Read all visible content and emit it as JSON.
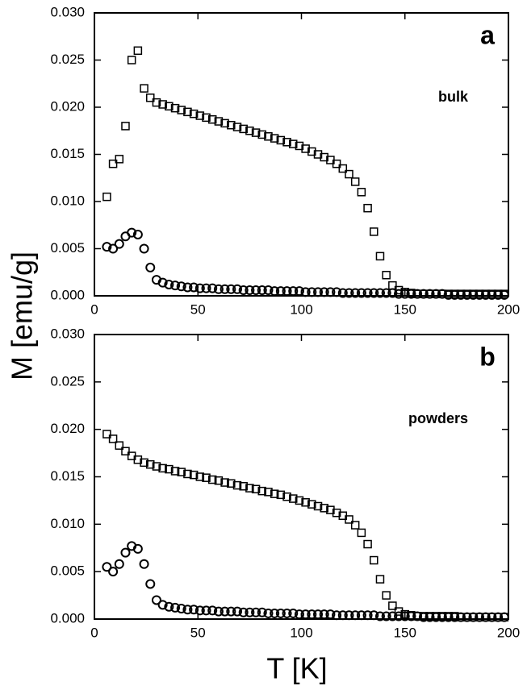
{
  "ylabel": "M [emu/g]",
  "xlabel": "T [K]",
  "chart_data": [
    {
      "type": "scatter",
      "letter": "a",
      "annotation": "bulk",
      "x": [
        6,
        9,
        12,
        15,
        18,
        21,
        24,
        27,
        30,
        33,
        36,
        39,
        42,
        45,
        48,
        51,
        54,
        57,
        60,
        63,
        66,
        69,
        72,
        75,
        78,
        81,
        84,
        87,
        90,
        93,
        96,
        99,
        102,
        105,
        108,
        111,
        114,
        117,
        120,
        123,
        126,
        129,
        132,
        135,
        138,
        141,
        144,
        147,
        150,
        153,
        156,
        159,
        162,
        165,
        168,
        171,
        174,
        177,
        180,
        183,
        186,
        189,
        192,
        195,
        198
      ],
      "series": [
        {
          "marker": "square",
          "color": "#000000",
          "values": [
            0.0105,
            0.014,
            0.0145,
            0.018,
            0.025,
            0.026,
            0.022,
            0.021,
            0.0205,
            0.0203,
            0.0201,
            0.0199,
            0.0197,
            0.0195,
            0.0193,
            0.0191,
            0.0189,
            0.0187,
            0.0185,
            0.0183,
            0.0181,
            0.0179,
            0.0177,
            0.0175,
            0.0173,
            0.0171,
            0.0169,
            0.0167,
            0.0165,
            0.0163,
            0.0161,
            0.0159,
            0.0156,
            0.0153,
            0.015,
            0.0147,
            0.0144,
            0.014,
            0.0135,
            0.0129,
            0.0121,
            0.011,
            0.0093,
            0.0068,
            0.0042,
            0.0022,
            0.0011,
            0.0006,
            0.0004,
            0.0003,
            0.0002,
            0.0002,
            0.0002,
            0.0002,
            0.0002,
            0.0002,
            0.0002,
            0.0002,
            0.0002,
            0.0002,
            0.0002,
            0.0002,
            0.0002,
            0.0002,
            0.0002
          ]
        },
        {
          "marker": "circle",
          "color": "#000000",
          "values": [
            0.0052,
            0.005,
            0.0055,
            0.0063,
            0.0067,
            0.0065,
            0.005,
            0.003,
            0.0017,
            0.0014,
            0.0012,
            0.0011,
            0.001,
            0.0009,
            0.0009,
            0.0008,
            0.0008,
            0.0008,
            0.0007,
            0.0007,
            0.0007,
            0.0007,
            0.0006,
            0.0006,
            0.0006,
            0.0006,
            0.0006,
            0.0005,
            0.0005,
            0.0005,
            0.0005,
            0.0005,
            0.0004,
            0.0004,
            0.0004,
            0.0004,
            0.0004,
            0.0004,
            0.0003,
            0.0003,
            0.0003,
            0.0003,
            0.0003,
            0.0003,
            0.0003,
            0.0003,
            0.0003,
            0.0002,
            0.0002,
            0.0002,
            0.0002,
            0.0002,
            0.0002,
            0.0002,
            0.0002,
            0.0001,
            0.0001,
            0.0001,
            0.0001,
            0.0001,
            0.0001,
            0.0001,
            0.0001,
            0.0001,
            0.0001
          ]
        }
      ],
      "xlim": [
        0,
        200
      ],
      "xticks": [
        0,
        50,
        100,
        150,
        200
      ],
      "ylim": [
        0,
        0.03
      ],
      "yticks": [
        {
          "value": 0,
          "label": "0.000"
        },
        {
          "value": 0.005,
          "label": "0.005"
        },
        {
          "value": 0.01,
          "label": "0.010"
        },
        {
          "value": 0.015,
          "label": "0.015"
        },
        {
          "value": 0.02,
          "label": "0.020"
        },
        {
          "value": 0.025,
          "label": "0.025"
        },
        {
          "value": 0.03,
          "label": "0.030"
        }
      ]
    },
    {
      "type": "scatter",
      "letter": "b",
      "annotation": "powders",
      "x": [
        6,
        9,
        12,
        15,
        18,
        21,
        24,
        27,
        30,
        33,
        36,
        39,
        42,
        45,
        48,
        51,
        54,
        57,
        60,
        63,
        66,
        69,
        72,
        75,
        78,
        81,
        84,
        87,
        90,
        93,
        96,
        99,
        102,
        105,
        108,
        111,
        114,
        117,
        120,
        123,
        126,
        129,
        132,
        135,
        138,
        141,
        144,
        147,
        150,
        153,
        156,
        159,
        162,
        165,
        168,
        171,
        174,
        177,
        180,
        183,
        186,
        189,
        192,
        195,
        198
      ],
      "series": [
        {
          "marker": "square",
          "color": "#000000",
          "values": [
            0.0195,
            0.019,
            0.0183,
            0.0177,
            0.0172,
            0.0168,
            0.0165,
            0.0163,
            0.0161,
            0.0159,
            0.0158,
            0.0156,
            0.0155,
            0.0153,
            0.0152,
            0.015,
            0.0149,
            0.0147,
            0.0146,
            0.0144,
            0.0143,
            0.0141,
            0.014,
            0.0138,
            0.0137,
            0.0135,
            0.0134,
            0.0132,
            0.0131,
            0.0129,
            0.0127,
            0.0125,
            0.0123,
            0.0121,
            0.0119,
            0.0117,
            0.0115,
            0.0112,
            0.0109,
            0.0105,
            0.0099,
            0.0091,
            0.0079,
            0.0062,
            0.0042,
            0.0025,
            0.0014,
            0.0008,
            0.0005,
            0.0004,
            0.0003,
            0.0003,
            0.0003,
            0.0003,
            0.0003,
            0.0003,
            0.0003,
            0.0002,
            0.0002,
            0.0002,
            0.0002,
            0.0002,
            0.0002,
            0.0002,
            0.0002
          ]
        },
        {
          "marker": "circle",
          "color": "#000000",
          "values": [
            0.0055,
            0.005,
            0.0058,
            0.007,
            0.0077,
            0.0074,
            0.0058,
            0.0037,
            0.002,
            0.0015,
            0.0013,
            0.0012,
            0.0011,
            0.001,
            0.001,
            0.0009,
            0.0009,
            0.0009,
            0.0008,
            0.0008,
            0.0008,
            0.0008,
            0.0007,
            0.0007,
            0.0007,
            0.0007,
            0.0006,
            0.0006,
            0.0006,
            0.0006,
            0.0006,
            0.0005,
            0.0005,
            0.0005,
            0.0005,
            0.0005,
            0.0005,
            0.0004,
            0.0004,
            0.0004,
            0.0004,
            0.0004,
            0.0004,
            0.0004,
            0.0003,
            0.0003,
            0.0003,
            0.0003,
            0.0003,
            0.0003,
            0.0003,
            0.0002,
            0.0002,
            0.0002,
            0.0002,
            0.0002,
            0.0002,
            0.0002,
            0.0002,
            0.0002,
            0.0002,
            0.0002,
            0.0002,
            0.0002,
            0.0002
          ]
        }
      ],
      "xlim": [
        0,
        200
      ],
      "xticks": [
        0,
        50,
        100,
        150,
        200
      ],
      "ylim": [
        0,
        0.03
      ],
      "yticks": [
        {
          "value": 0,
          "label": "0.000"
        },
        {
          "value": 0.005,
          "label": "0.005"
        },
        {
          "value": 0.01,
          "label": "0.010"
        },
        {
          "value": 0.015,
          "label": "0.015"
        },
        {
          "value": 0.02,
          "label": "0.020"
        },
        {
          "value": 0.025,
          "label": "0.025"
        },
        {
          "value": 0.03,
          "label": "0.030"
        }
      ]
    }
  ]
}
